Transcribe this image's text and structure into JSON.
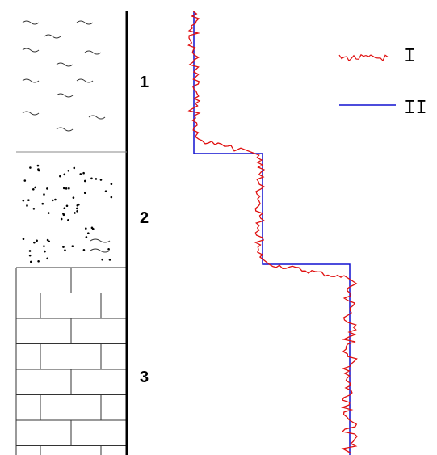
{
  "layers": [
    {
      "label": "1"
    },
    {
      "label": "2"
    },
    {
      "label": "3"
    }
  ],
  "legend": [
    {
      "label": "I"
    },
    {
      "label": "II"
    }
  ]
}
